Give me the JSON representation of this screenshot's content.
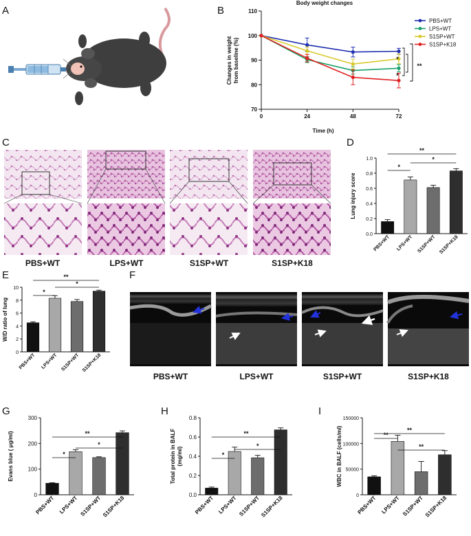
{
  "panel_letters": [
    "A",
    "B",
    "C",
    "D",
    "E",
    "F",
    "G",
    "H",
    "I"
  ],
  "colors": {
    "pbs": "#1f2fb0",
    "lps": "#1aa06a",
    "s1sp_wt": "#d8c92b",
    "s1sp_k18": "#e02020",
    "bar_pbs": "#111111",
    "bar_lps": "#a8a8a8",
    "bar_s1sp_wt": "#6d6d6d",
    "bar_s1sp_k18": "#2e2e2e",
    "he_stain": "#c779b8",
    "us_dark": "#0c0c0c",
    "arrow_blue": "#2233dd"
  },
  "panelA": {
    "icons": [
      "syringe-icon",
      "mouse-icon"
    ]
  },
  "panelC": {
    "captions": [
      "PBS+WT",
      "LPS+WT",
      "S1SP+WT",
      "S1SP+K18"
    ]
  },
  "panelF": {
    "captions": [
      "PBS+WT",
      "LPS+WT",
      "S1SP+WT",
      "S1SP+K18"
    ]
  },
  "chart_data": [
    {
      "id": "B",
      "type": "line",
      "title": "Body weight changes",
      "xlabel": "Time (h)",
      "ylabel": "Changes in weight from baseline (%)",
      "ylabel_lines": [
        "Changes in weight",
        "from baseline (%)"
      ],
      "x": [
        0,
        24,
        48,
        72
      ],
      "xticks": [
        "0",
        "24",
        "48",
        "72"
      ],
      "yticks": [
        "70",
        "80",
        "90",
        "100",
        "110"
      ],
      "xlim": [
        0,
        72
      ],
      "ylim": [
        70,
        110
      ],
      "series": [
        {
          "name": "PBS+WT",
          "color": "#1f2fb0",
          "values": [
            100,
            96.2,
            93.3,
            93.6
          ],
          "err": [
            0,
            2.8,
            2.0,
            1.2
          ]
        },
        {
          "name": "LPS+WT",
          "color": "#1aa06a",
          "values": [
            100,
            90.2,
            85.8,
            86.7
          ],
          "err": [
            0,
            1.2,
            1.5,
            1.5
          ]
        },
        {
          "name": "S1SP+WT",
          "color": "#d8c92b",
          "values": [
            100,
            93.8,
            88.4,
            90.5
          ],
          "err": [
            0,
            1.5,
            2.0,
            2.0
          ]
        },
        {
          "name": "S1SP+K18",
          "color": "#e02020",
          "values": [
            100,
            90.8,
            83.0,
            81.7
          ],
          "err": [
            0,
            1.5,
            3.0,
            3.0
          ]
        }
      ],
      "annotations": [
        "*",
        "*",
        "**"
      ],
      "legend": "top-right"
    },
    {
      "id": "D",
      "type": "bar",
      "ylabel": "Lung injury score",
      "categories": [
        "PBS+WT",
        "LPS+WT",
        "S1SP+WT",
        "S1SP+K18"
      ],
      "values": [
        0.16,
        0.71,
        0.61,
        0.83
      ],
      "err": [
        0.025,
        0.04,
        0.03,
        0.03
      ],
      "yticks": [
        "0.0",
        "0.2",
        "0.4",
        "0.6",
        "0.8",
        "1.0"
      ],
      "ylim": [
        0,
        1.0
      ],
      "significance": [
        {
          "from": 0,
          "to": 1,
          "label": "*"
        },
        {
          "from": 1,
          "to": 3,
          "label": "*"
        },
        {
          "from": 0,
          "to": 3,
          "label": "**"
        }
      ]
    },
    {
      "id": "E",
      "type": "bar",
      "ylabel": "W/D ratio of lung",
      "categories": [
        "PBS+WT",
        "LPS+WT",
        "S1SP+WT",
        "S1SP+K18"
      ],
      "values": [
        4.5,
        8.3,
        7.8,
        9.4
      ],
      "err": [
        0.15,
        0.4,
        0.3,
        0.15
      ],
      "yticks": [
        "0",
        "2",
        "4",
        "6",
        "8",
        "10"
      ],
      "ylim": [
        0,
        10
      ],
      "significance": [
        {
          "from": 0,
          "to": 1,
          "label": "*"
        },
        {
          "from": 1,
          "to": 3,
          "label": "*"
        },
        {
          "from": 0,
          "to": 3,
          "label": "**"
        }
      ]
    },
    {
      "id": "G",
      "type": "bar",
      "ylabel": "Evans blue ( μg/ml)",
      "categories": [
        "PBS+WT",
        "LPS+WT",
        "S1SP+WT",
        "S1SP+K18"
      ],
      "values": [
        45,
        168,
        145,
        242
      ],
      "err": [
        2,
        8,
        3,
        7
      ],
      "yticks": [
        "0",
        "100",
        "200",
        "300"
      ],
      "ylim": [
        0,
        300
      ],
      "significance": [
        {
          "from": 0,
          "to": 1,
          "label": "*"
        },
        {
          "from": 1,
          "to": 3,
          "label": "*"
        },
        {
          "from": 0,
          "to": 3,
          "label": "**"
        }
      ]
    },
    {
      "id": "H",
      "type": "bar",
      "ylabel": "Total protein in BALF (mg/ml)",
      "ylabel_lines": [
        "Total protein in BALF",
        "(mg/ml)"
      ],
      "categories": [
        "PBS+WT",
        "LPS+WT",
        "S1SP+WT",
        "S1SP+K18"
      ],
      "values": [
        0.07,
        0.45,
        0.385,
        0.675
      ],
      "err": [
        0.01,
        0.045,
        0.025,
        0.02
      ],
      "yticks": [
        "0.0",
        "0.2",
        "0.4",
        "0.6",
        "0.8"
      ],
      "ylim": [
        0,
        0.8
      ],
      "significance": [
        {
          "from": 0,
          "to": 1,
          "label": "*"
        },
        {
          "from": 1,
          "to": 3,
          "label": "*"
        },
        {
          "from": 0,
          "to": 3,
          "label": "**"
        }
      ]
    },
    {
      "id": "I",
      "type": "bar",
      "ylabel": "WBC in BALF (cells/ml)",
      "categories": [
        "PBS+WT",
        "LPS+WT",
        "S1SP+WT",
        "S1SP+K18"
      ],
      "values": [
        35000,
        104000,
        45000,
        78000
      ],
      "err": [
        2000,
        12000,
        20000,
        8000
      ],
      "yticks": [
        "0",
        "50000",
        "100000",
        "150000"
      ],
      "ylim": [
        0,
        150000
      ],
      "significance": [
        {
          "from": 0,
          "to": 1,
          "label": "**"
        },
        {
          "from": 1,
          "to": 3,
          "label": "**"
        },
        {
          "from": 0,
          "to": 3,
          "label": "**"
        }
      ]
    }
  ]
}
